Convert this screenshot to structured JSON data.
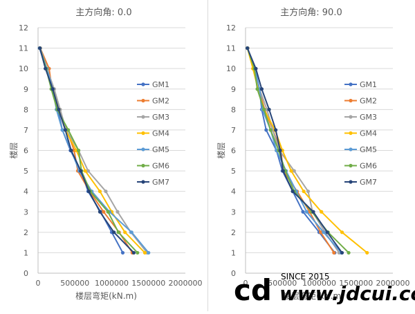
{
  "series_names": [
    "GM1",
    "GM2",
    "GM3",
    "GM4",
    "GM5",
    "GM6",
    "GM7"
  ],
  "series_colors": [
    "#4472C4",
    "#ED7D31",
    "#A5A5A5",
    "#FFC000",
    "#5B9BD5",
    "#70AD47",
    "#264478"
  ],
  "watermark": {
    "line1": "SINCE 2015",
    "logo": "cd",
    "domain": "www.jdcui.com"
  },
  "chart_data": [
    {
      "type": "line",
      "title": "主方向角: 0.0",
      "xlabel": "楼层弯矩(kN.m)",
      "ylabel": "楼层",
      "xlim": [
        0,
        2000000
      ],
      "ylim": [
        0,
        12
      ],
      "xticks": [
        "0",
        "500000",
        "1000000",
        "1500000",
        "2000000"
      ],
      "yticks": [
        "0",
        "1",
        "2",
        "3",
        "4",
        "5",
        "6",
        "7",
        "8",
        "9",
        "10",
        "11",
        "12"
      ],
      "grid": "horizontal",
      "legend_position": "right",
      "y": [
        11,
        10,
        9,
        8,
        7,
        6,
        5,
        4,
        3,
        2,
        1
      ],
      "series": [
        {
          "name": "GM1",
          "values": [
            20000,
            110000,
            190000,
            270000,
            330000,
            440000,
            580000,
            680000,
            850000,
            1000000,
            1150000
          ]
        },
        {
          "name": "GM2",
          "values": [
            30000,
            150000,
            190000,
            280000,
            390000,
            490000,
            540000,
            700000,
            890000,
            1100000,
            1280000
          ]
        },
        {
          "name": "GM3",
          "values": [
            30000,
            120000,
            220000,
            300000,
            380000,
            550000,
            680000,
            920000,
            1080000,
            1260000,
            1480000
          ]
        },
        {
          "name": "GM4",
          "values": [
            25000,
            110000,
            200000,
            280000,
            370000,
            520000,
            640000,
            840000,
            1000000,
            1180000,
            1450000
          ]
        },
        {
          "name": "GM5",
          "values": [
            25000,
            120000,
            200000,
            250000,
            330000,
            450000,
            560000,
            730000,
            970000,
            1270000,
            1500000
          ]
        },
        {
          "name": "GM6",
          "values": [
            25000,
            110000,
            180000,
            260000,
            410000,
            550000,
            590000,
            710000,
            950000,
            1090000,
            1350000
          ]
        },
        {
          "name": "GM7",
          "values": [
            25000,
            100000,
            200000,
            280000,
            370000,
            450000,
            580000,
            690000,
            840000,
            1030000,
            1300000
          ]
        }
      ]
    },
    {
      "type": "line",
      "title": "主方向角: 90.0",
      "xlabel": "楼层弯矩(kN.m)",
      "ylabel": "楼层",
      "xlim": [
        0,
        2000000
      ],
      "ylim": [
        0,
        12
      ],
      "xticks": [
        "0",
        "500000",
        "1000000",
        "1500000",
        "2000000"
      ],
      "yticks": [
        "0",
        "1",
        "2",
        "3",
        "4",
        "5",
        "6",
        "7",
        "8",
        "9",
        "10",
        "11",
        "12"
      ],
      "grid": "horizontal",
      "legend_position": "right",
      "y": [
        11,
        10,
        9,
        8,
        7,
        6,
        5,
        4,
        3,
        2,
        1
      ],
      "series": [
        {
          "name": "GM1",
          "values": [
            25000,
            120000,
            190000,
            220000,
            280000,
            420000,
            500000,
            640000,
            780000,
            1000000,
            1210000
          ]
        },
        {
          "name": "GM2",
          "values": [
            30000,
            110000,
            180000,
            260000,
            370000,
            480000,
            510000,
            700000,
            870000,
            1020000,
            1200000
          ]
        },
        {
          "name": "GM3",
          "values": [
            30000,
            110000,
            190000,
            290000,
            370000,
            460000,
            660000,
            850000,
            910000,
            1080000,
            1270000
          ]
        },
        {
          "name": "GM4",
          "values": [
            25000,
            100000,
            170000,
            250000,
            400000,
            500000,
            620000,
            790000,
            1030000,
            1310000,
            1650000
          ]
        },
        {
          "name": "GM5",
          "values": [
            25000,
            130000,
            190000,
            230000,
            340000,
            420000,
            550000,
            690000,
            830000,
            1060000,
            1300000
          ]
        },
        {
          "name": "GM6",
          "values": [
            25000,
            120000,
            160000,
            250000,
            340000,
            450000,
            540000,
            660000,
            900000,
            1120000,
            1400000
          ]
        },
        {
          "name": "GM7",
          "values": [
            25000,
            140000,
            220000,
            320000,
            410000,
            470000,
            510000,
            640000,
            920000,
            1110000,
            1310000
          ]
        }
      ]
    }
  ]
}
